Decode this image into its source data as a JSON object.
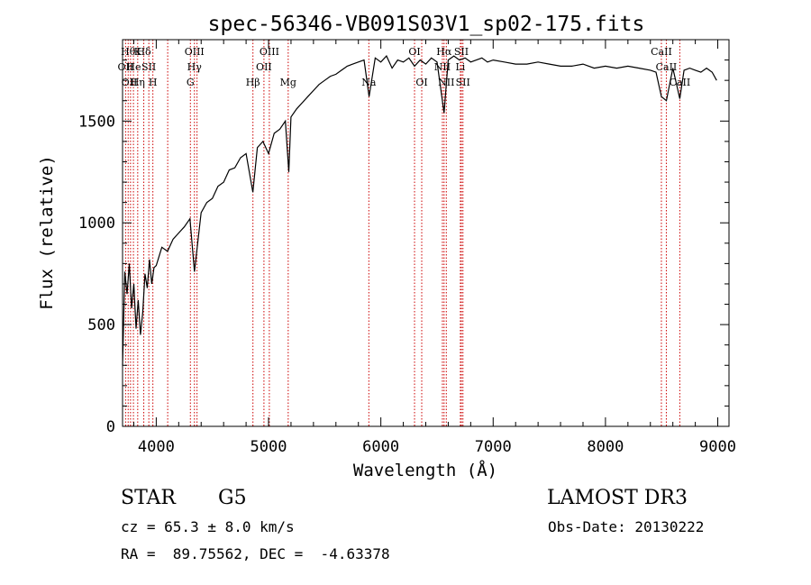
{
  "chart_data": {
    "type": "line",
    "title": "spec-56346-VB091S03V1_sp02-175.fits",
    "xlabel": "Wavelength (Å)",
    "ylabel": "Flux (relative)",
    "xlim": [
      3700,
      9100
    ],
    "ylim": [
      0,
      1900
    ],
    "xticks": [
      4000,
      5000,
      6000,
      7000,
      8000,
      9000
    ],
    "yticks": [
      0,
      500,
      1000,
      1500
    ],
    "grid": false,
    "series": [
      {
        "name": "flux",
        "x": [
          3700,
          3720,
          3740,
          3760,
          3780,
          3800,
          3820,
          3840,
          3860,
          3880,
          3900,
          3920,
          3940,
          3960,
          3980,
          4000,
          4050,
          4100,
          4150,
          4200,
          4250,
          4300,
          4340,
          4400,
          4450,
          4500,
          4550,
          4600,
          4650,
          4700,
          4750,
          4800,
          4860,
          4900,
          4950,
          5000,
          5050,
          5100,
          5150,
          5180,
          5200,
          5250,
          5300,
          5350,
          5400,
          5450,
          5500,
          5550,
          5600,
          5650,
          5700,
          5750,
          5800,
          5850,
          5895,
          5950,
          6000,
          6050,
          6100,
          6150,
          6200,
          6250,
          6300,
          6350,
          6400,
          6450,
          6500,
          6563,
          6600,
          6650,
          6700,
          6750,
          6800,
          6850,
          6900,
          6950,
          7000,
          7100,
          7200,
          7300,
          7400,
          7500,
          7600,
          7700,
          7800,
          7900,
          8000,
          8100,
          8200,
          8300,
          8400,
          8450,
          8498,
          8542,
          8600,
          8662,
          8700,
          8750,
          8800,
          8850,
          8900,
          8950,
          8990
        ],
        "y": [
          300,
          760,
          650,
          800,
          580,
          700,
          480,
          620,
          450,
          560,
          750,
          680,
          820,
          700,
          780,
          790,
          880,
          860,
          920,
          950,
          980,
          1020,
          760,
          1050,
          1100,
          1120,
          1180,
          1200,
          1260,
          1270,
          1320,
          1340,
          1150,
          1370,
          1400,
          1340,
          1440,
          1460,
          1500,
          1250,
          1520,
          1560,
          1590,
          1620,
          1650,
          1680,
          1700,
          1720,
          1730,
          1750,
          1770,
          1780,
          1790,
          1800,
          1620,
          1810,
          1790,
          1820,
          1760,
          1800,
          1790,
          1810,
          1770,
          1800,
          1780,
          1810,
          1790,
          1540,
          1800,
          1820,
          1800,
          1810,
          1790,
          1800,
          1810,
          1790,
          1800,
          1790,
          1780,
          1780,
          1790,
          1780,
          1770,
          1770,
          1780,
          1760,
          1770,
          1760,
          1770,
          1760,
          1750,
          1740,
          1620,
          1600,
          1760,
          1610,
          1750,
          1760,
          1750,
          1740,
          1760,
          1740,
          1700
        ]
      }
    ],
    "line_markers": [
      {
        "wl": 3750,
        "label": "Hθ",
        "row": 0
      },
      {
        "wl": 3835,
        "label": "K",
        "row": 0
      },
      {
        "wl": 3889,
        "label": "Hδ",
        "row": 0
      },
      {
        "wl": 4340,
        "label": "OIII",
        "row": 0
      },
      {
        "wl": 5007,
        "label": "OIII",
        "row": 0
      },
      {
        "wl": 6300,
        "label": "OI",
        "row": 0
      },
      {
        "wl": 6563,
        "label": "Hα",
        "row": 0
      },
      {
        "wl": 6717,
        "label": "SII",
        "row": 0
      },
      {
        "wl": 8498,
        "label": "CaII",
        "row": 0
      },
      {
        "wl": 3727,
        "label": "OII",
        "row": 1
      },
      {
        "wl": 3800,
        "label": "He",
        "row": 1
      },
      {
        "wl": 3934,
        "label": "SII",
        "row": 1
      },
      {
        "wl": 4340,
        "label": "Hγ",
        "row": 1
      },
      {
        "wl": 4959,
        "label": "OII",
        "row": 1
      },
      {
        "wl": 6548,
        "label": "NII",
        "row": 1
      },
      {
        "wl": 6708,
        "label": "Li",
        "row": 1
      },
      {
        "wl": 8542,
        "label": "CaII",
        "row": 1
      },
      {
        "wl": 3760,
        "label": "OII",
        "row": 2
      },
      {
        "wl": 3835,
        "label": "Hη",
        "row": 2
      },
      {
        "wl": 3970,
        "label": "H",
        "row": 2
      },
      {
        "wl": 4304,
        "label": "G",
        "row": 2
      },
      {
        "wl": 4861,
        "label": "Hβ",
        "row": 2
      },
      {
        "wl": 5175,
        "label": "Mg",
        "row": 2
      },
      {
        "wl": 5893,
        "label": "Na",
        "row": 2
      },
      {
        "wl": 6364,
        "label": "OI",
        "row": 2
      },
      {
        "wl": 6583,
        "label": "NII",
        "row": 2
      },
      {
        "wl": 6731,
        "label": "SII",
        "row": 2
      },
      {
        "wl": 8662,
        "label": "CaII",
        "row": 2
      }
    ],
    "line_positions": [
      3727,
      3750,
      3771,
      3797,
      3835,
      3889,
      3934,
      3970,
      4102,
      4304,
      4340,
      4363,
      4861,
      4959,
      5007,
      5175,
      5893,
      6300,
      6364,
      6548,
      6563,
      6583,
      6708,
      6717,
      6731,
      8498,
      8542,
      8662
    ]
  },
  "info": {
    "object_class": "STAR",
    "subclass": "G5",
    "survey": "LAMOST DR3",
    "redshift": "cz = 65.3 ± 8.0 km/s",
    "obs_date": "Obs-Date: 20130222",
    "coords": "RA =  89.75562, DEC =  -4.63378"
  },
  "colors": {
    "axis": "#000000",
    "spectrum": "#000000",
    "line_marker": "#cc0000"
  }
}
